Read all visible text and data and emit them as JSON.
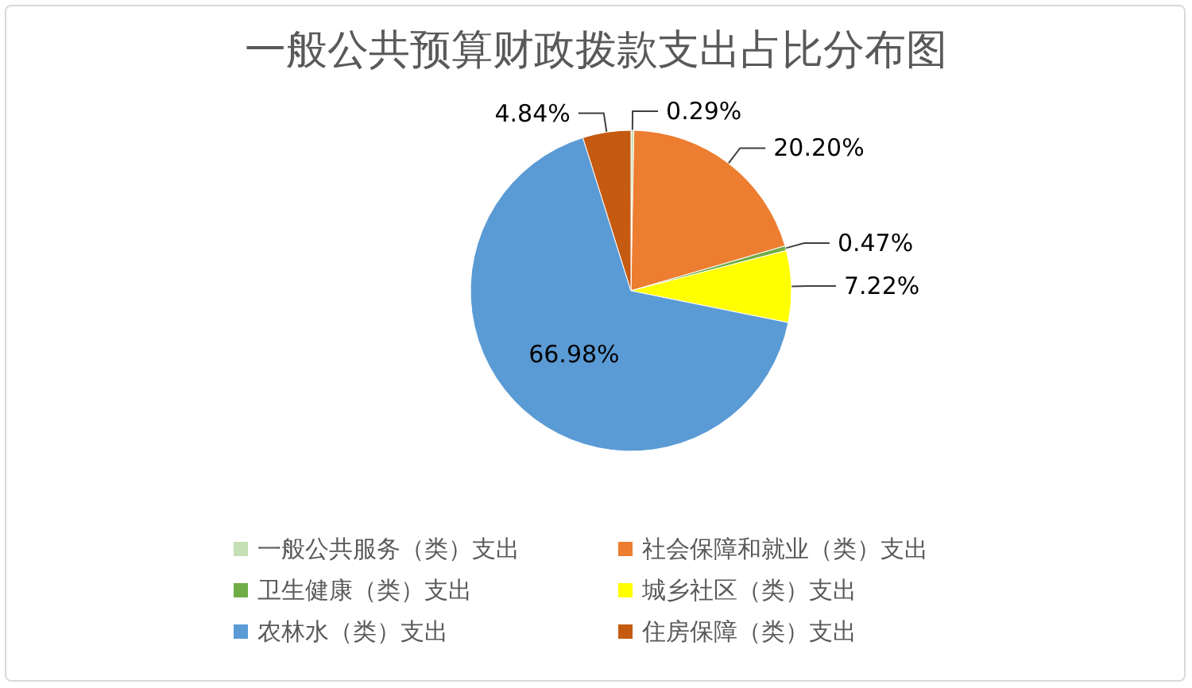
{
  "chart_data": {
    "type": "pie",
    "title": "一般公共预算财政拨款支出占比分布图",
    "categories": [
      "一般公共服务（类）支出",
      "社会保障和就业（类）支出",
      "卫生健康（类）支出",
      "城乡社区（类）支出",
      "农林水（类）支出",
      "住房保障（类）支出"
    ],
    "values": [
      0.29,
      20.2,
      0.47,
      7.22,
      66.98,
      4.84
    ],
    "value_labels": [
      "0.29%",
      "20.20%",
      "0.47%",
      "7.22%",
      "66.98%",
      "4.84%"
    ],
    "colors": [
      "#c5e0b4",
      "#ed7d31",
      "#70ad47",
      "#ffff00",
      "#5b9bd5",
      "#c55a11"
    ],
    "legend": "bottom"
  }
}
